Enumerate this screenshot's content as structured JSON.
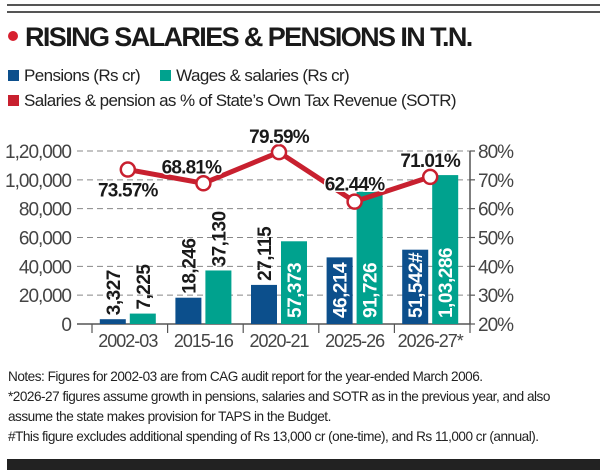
{
  "title": "RISING SALARIES & PENSIONS IN T.N.",
  "colors": {
    "pensions": "#0c4f8c",
    "wages": "#00a28e",
    "line": "#c8202f",
    "title_dot": "#d7202f"
  },
  "legend": [
    {
      "label": "Pensions (Rs cr)",
      "color": "#0c4f8c"
    },
    {
      "label": "Wages & salaries (Rs cr)",
      "color": "#00a28e"
    },
    {
      "label": "Salaries & pension as % of State’s Own Tax Revenue (SOTR)",
      "color": "#c8202f"
    }
  ],
  "chart_data": {
    "type": "bar",
    "title": "RISING SALARIES & PENSIONS IN T.N.",
    "categories": [
      "2002-03",
      "2015-16",
      "2020-21",
      "2025-26",
      "2026-27*"
    ],
    "series": [
      {
        "name": "Pensions (Rs cr)",
        "type": "bar",
        "axis": "left",
        "values": [
          3327,
          18246,
          27115,
          46214,
          51542
        ],
        "labels": [
          "3,327",
          "18,246",
          "27,115",
          "46,214",
          "51,542#"
        ]
      },
      {
        "name": "Wages & salaries (Rs cr)",
        "type": "bar",
        "axis": "left",
        "values": [
          7225,
          37130,
          57373,
          91726,
          103286
        ],
        "labels": [
          "7,225",
          "37,130",
          "57,373",
          "91,726",
          "1,03,286"
        ]
      },
      {
        "name": "Salaries & pension as % of State’s Own Tax Revenue (SOTR)",
        "type": "line",
        "axis": "right",
        "values": [
          73.57,
          68.81,
          79.59,
          62.44,
          71.01
        ],
        "labels": [
          "73.57%",
          "68.81%",
          "79.59%",
          "62.44%",
          "71.01%"
        ]
      }
    ],
    "ylim": [
      0,
      120000
    ],
    "y_ticks": [
      "0",
      "20,000",
      "40,000",
      "60,000",
      "80,000",
      "1,00,000",
      "1,20,000"
    ],
    "y2lim": [
      20,
      80
    ],
    "y2_ticks": [
      "20%",
      "30%",
      "40%",
      "50%",
      "60%",
      "70%",
      "80%"
    ],
    "grid": true,
    "legend_position": "top-left"
  },
  "notes": [
    "Notes: Figures for 2002-03 are from CAG audit report for the year-ended March 2006.",
    "*2026-27 figures assume growth in pensions, salaries and SOTR as in the previous year, and also",
    "assume the state makes provision for TAPS in the Budget.",
    "#This figure excludes additional spending of Rs 13,000 cr (one-time), and Rs 11,000 cr (annual)."
  ]
}
